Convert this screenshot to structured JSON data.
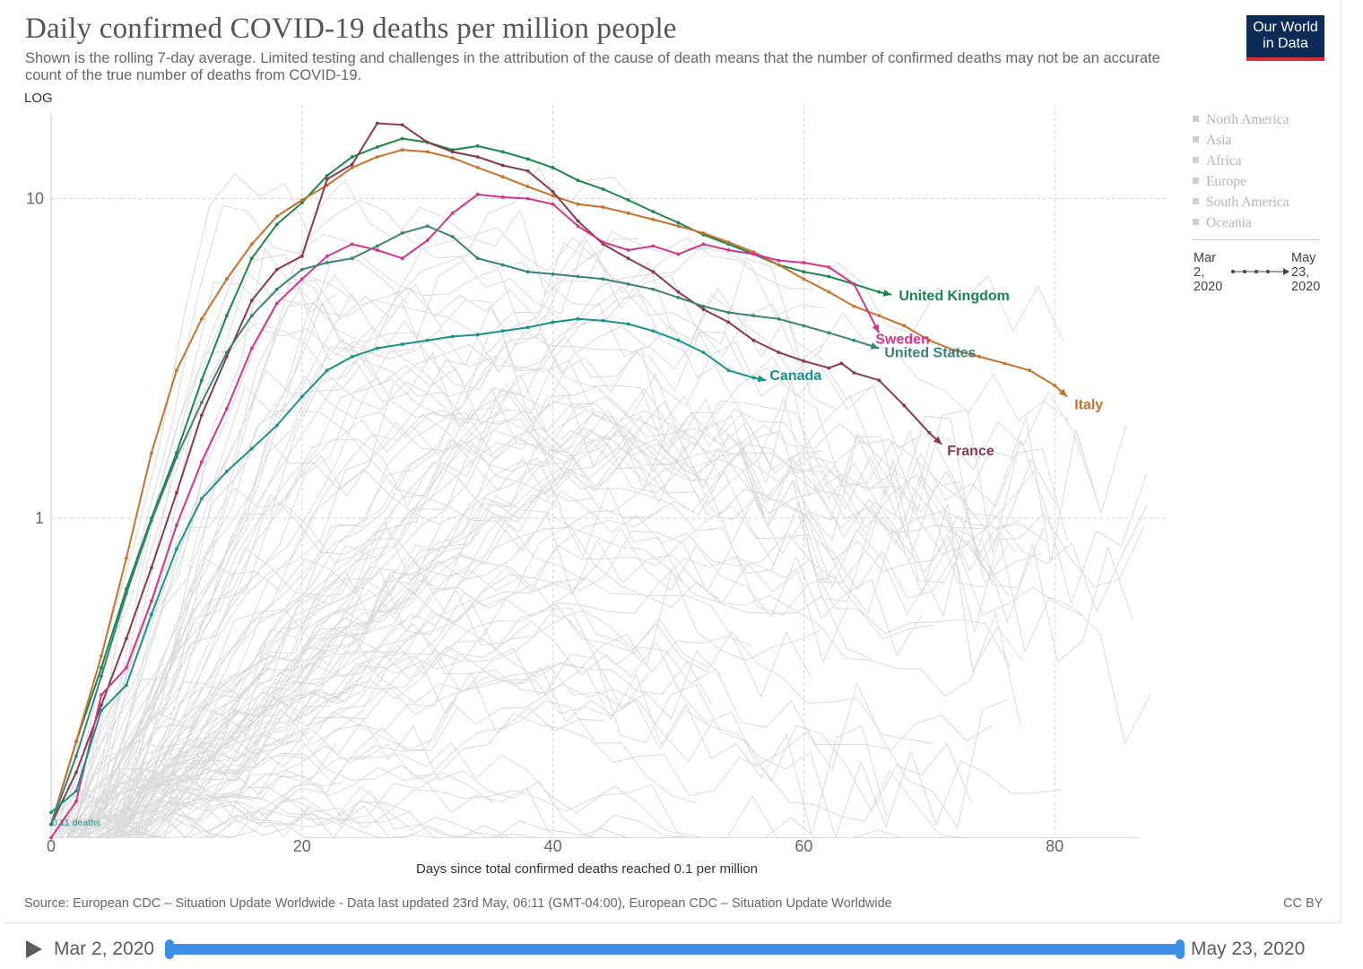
{
  "header": {
    "title": "Daily confirmed COVID-19 deaths per million people",
    "subtitle": "Shown is the rolling 7-day average. Limited testing and challenges in the attribution of the cause of death means that the number of confirmed deaths may not be an accurate count of the true number of deaths from COVID-19.",
    "logo_line1": "Our World",
    "logo_line2": "in Data",
    "scale_toggle": "LOG"
  },
  "legend": {
    "regions": [
      "North America",
      "Asia",
      "Africa",
      "Europe",
      "South America",
      "Oceania"
    ]
  },
  "time_legend": {
    "start_month": "Mar",
    "start_day": "2,",
    "start_year": "2020",
    "end_month": "May",
    "end_day": "23,",
    "end_year": "2020"
  },
  "footer": {
    "source": "Source: European CDC – Situation Update Worldwide - Data last updated 23rd May, 06:11 (GMT-04:00), European CDC – Situation Update Worldwide",
    "license": "CC BY"
  },
  "timeline": {
    "start_label": "Mar 2, 2020",
    "end_label": "May 23, 2020"
  },
  "colors": {
    "United Kingdom": "#18874a",
    "Italy": "#c8712b",
    "France": "#8b3a4a",
    "Sweden": "#d6338c",
    "United States": "#3a8477",
    "Canada": "#17928c",
    "background_lines": "#dadada",
    "accent": "#3d8ee6"
  },
  "chart_data": {
    "type": "line",
    "title": "Daily confirmed COVID-19 deaths per million people",
    "xlabel": "Days since total confirmed deaths reached 0.1 per million",
    "ylabel": "",
    "y_scale": "log",
    "xlim": [
      0,
      88
    ],
    "ylim": [
      0.1,
      20
    ],
    "x_ticks": [
      0,
      20,
      40,
      60,
      80
    ],
    "y_ticks": [
      1,
      10
    ],
    "grid": true,
    "start_annotation": "0.11 deaths",
    "series": [
      {
        "name": "United Kingdom",
        "x": [
          0,
          2,
          4,
          6,
          8,
          10,
          12,
          14,
          16,
          18,
          20,
          22,
          24,
          26,
          28,
          30,
          32,
          34,
          36,
          38,
          40,
          42,
          44,
          46,
          48,
          50,
          52,
          54,
          56,
          58,
          60,
          62,
          64,
          66,
          67
        ],
        "values": [
          0.11,
          0.2,
          0.34,
          0.6,
          1.0,
          1.6,
          2.7,
          4.3,
          6.5,
          8.3,
          9.7,
          11.8,
          13.5,
          14.5,
          15.4,
          15.0,
          14.2,
          14.6,
          14.0,
          13.3,
          12.5,
          11.4,
          10.7,
          9.9,
          9.1,
          8.4,
          7.7,
          7.2,
          6.7,
          6.2,
          5.9,
          5.7,
          5.4,
          5.1,
          5.0
        ],
        "end_label": "United Kingdom"
      },
      {
        "name": "Italy",
        "x": [
          0,
          2,
          4,
          6,
          8,
          10,
          12,
          14,
          16,
          18,
          20,
          22,
          24,
          26,
          28,
          30,
          32,
          34,
          36,
          38,
          40,
          42,
          44,
          46,
          48,
          50,
          52,
          54,
          56,
          58,
          60,
          62,
          64,
          66,
          68,
          70,
          72,
          74,
          76,
          78,
          80,
          81
        ],
        "values": [
          0.11,
          0.2,
          0.37,
          0.75,
          1.6,
          2.9,
          4.2,
          5.6,
          7.2,
          8.8,
          9.9,
          11.0,
          12.5,
          13.5,
          14.2,
          14.0,
          13.4,
          12.5,
          11.7,
          10.9,
          10.2,
          9.6,
          9.4,
          9.0,
          8.6,
          8.2,
          7.8,
          7.3,
          6.8,
          6.2,
          5.6,
          5.1,
          4.6,
          4.3,
          4.0,
          3.6,
          3.35,
          3.2,
          3.05,
          2.9,
          2.6,
          2.4
        ],
        "end_label": "Italy"
      },
      {
        "name": "France",
        "x": [
          0,
          2,
          4,
          6,
          8,
          10,
          12,
          14,
          16,
          18,
          20,
          22,
          24,
          26,
          28,
          30,
          32,
          34,
          36,
          38,
          40,
          42,
          44,
          46,
          48,
          50,
          52,
          54,
          56,
          58,
          60,
          62,
          63,
          64,
          66,
          68,
          70,
          71
        ],
        "values": [
          0.11,
          0.16,
          0.26,
          0.42,
          0.7,
          1.2,
          2.1,
          3.2,
          4.8,
          6.0,
          6.6,
          11.5,
          12.8,
          17.2,
          17.0,
          15.0,
          14.0,
          13.5,
          12.7,
          12.2,
          10.5,
          8.5,
          7.2,
          6.5,
          5.9,
          5.1,
          4.5,
          4.1,
          3.6,
          3.3,
          3.1,
          2.95,
          3.05,
          2.85,
          2.7,
          2.25,
          1.85,
          1.7
        ],
        "end_label": "France"
      },
      {
        "name": "Sweden",
        "x": [
          0,
          2,
          4,
          6,
          8,
          10,
          12,
          14,
          16,
          18,
          20,
          22,
          24,
          26,
          28,
          30,
          32,
          34,
          36,
          38,
          40,
          42,
          44,
          46,
          48,
          50,
          52,
          54,
          56,
          58,
          60,
          62,
          64,
          66
        ],
        "values": [
          0.1,
          0.13,
          0.28,
          0.34,
          0.55,
          0.95,
          1.5,
          2.2,
          3.4,
          4.7,
          5.6,
          6.6,
          7.2,
          6.9,
          6.5,
          7.4,
          9.0,
          10.3,
          10.1,
          10.0,
          9.6,
          8.2,
          7.3,
          6.9,
          7.1,
          6.7,
          7.2,
          6.9,
          6.7,
          6.4,
          6.3,
          6.1,
          5.4,
          3.8
        ],
        "end_label": "Sweden"
      },
      {
        "name": "United States",
        "x": [
          0,
          2,
          4,
          6,
          8,
          10,
          12,
          14,
          16,
          18,
          20,
          22,
          24,
          26,
          28,
          30,
          32,
          34,
          36,
          38,
          40,
          42,
          44,
          46,
          48,
          50,
          52,
          54,
          56,
          58,
          60,
          62,
          64,
          66
        ],
        "values": [
          0.11,
          0.18,
          0.32,
          0.58,
          0.98,
          1.55,
          2.3,
          3.3,
          4.3,
          5.2,
          6.0,
          6.3,
          6.5,
          7.1,
          7.8,
          8.2,
          7.6,
          6.5,
          6.2,
          5.9,
          5.8,
          5.7,
          5.6,
          5.4,
          5.2,
          4.9,
          4.6,
          4.4,
          4.3,
          4.2,
          4.0,
          3.8,
          3.6,
          3.4
        ],
        "end_label": "United States"
      },
      {
        "name": "Canada",
        "x": [
          0,
          2,
          4,
          6,
          8,
          10,
          12,
          14,
          16,
          18,
          20,
          22,
          24,
          26,
          28,
          30,
          32,
          34,
          36,
          38,
          40,
          42,
          44,
          46,
          48,
          50,
          52,
          54,
          56,
          57
        ],
        "values": [
          0.12,
          0.14,
          0.25,
          0.3,
          0.5,
          0.8,
          1.15,
          1.4,
          1.65,
          1.95,
          2.4,
          2.9,
          3.2,
          3.4,
          3.5,
          3.6,
          3.7,
          3.75,
          3.85,
          3.95,
          4.1,
          4.2,
          4.15,
          4.05,
          3.85,
          3.6,
          3.3,
          2.9,
          2.75,
          2.7
        ],
        "end_label": "Canada"
      }
    ]
  }
}
